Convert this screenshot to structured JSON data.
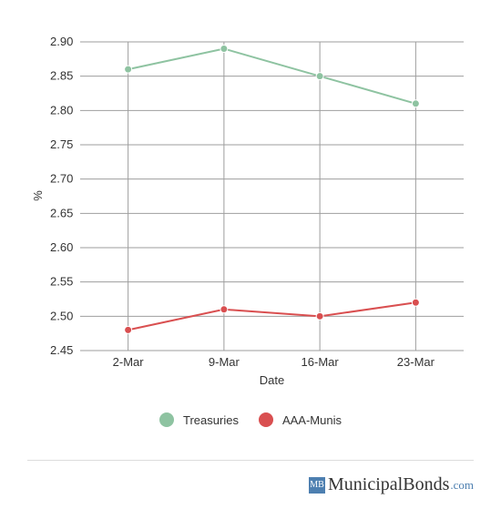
{
  "chart_data": {
    "type": "line",
    "categories": [
      "2-Mar",
      "9-Mar",
      "16-Mar",
      "23-Mar"
    ],
    "series": [
      {
        "name": "Treasuries",
        "values": [
          2.86,
          2.89,
          2.85,
          2.81
        ],
        "color": "#8ec3a1"
      },
      {
        "name": "AAA-Munis",
        "values": [
          2.48,
          2.51,
          2.5,
          2.52
        ],
        "color": "#d94f50"
      }
    ],
    "title": "",
    "xlabel": "Date",
    "ylabel": "%",
    "ylim": [
      2.45,
      2.9
    ],
    "yticks": [
      "2.90",
      "2.85",
      "2.80",
      "2.75",
      "2.70",
      "2.65",
      "2.60",
      "2.55",
      "2.50",
      "2.45"
    ],
    "grid": true,
    "legend_position": "bottom-center"
  },
  "branding": {
    "mark": "MB",
    "name": "MunicipalBonds",
    "tld": ".com",
    "mark_color": "#4d7fb0"
  }
}
